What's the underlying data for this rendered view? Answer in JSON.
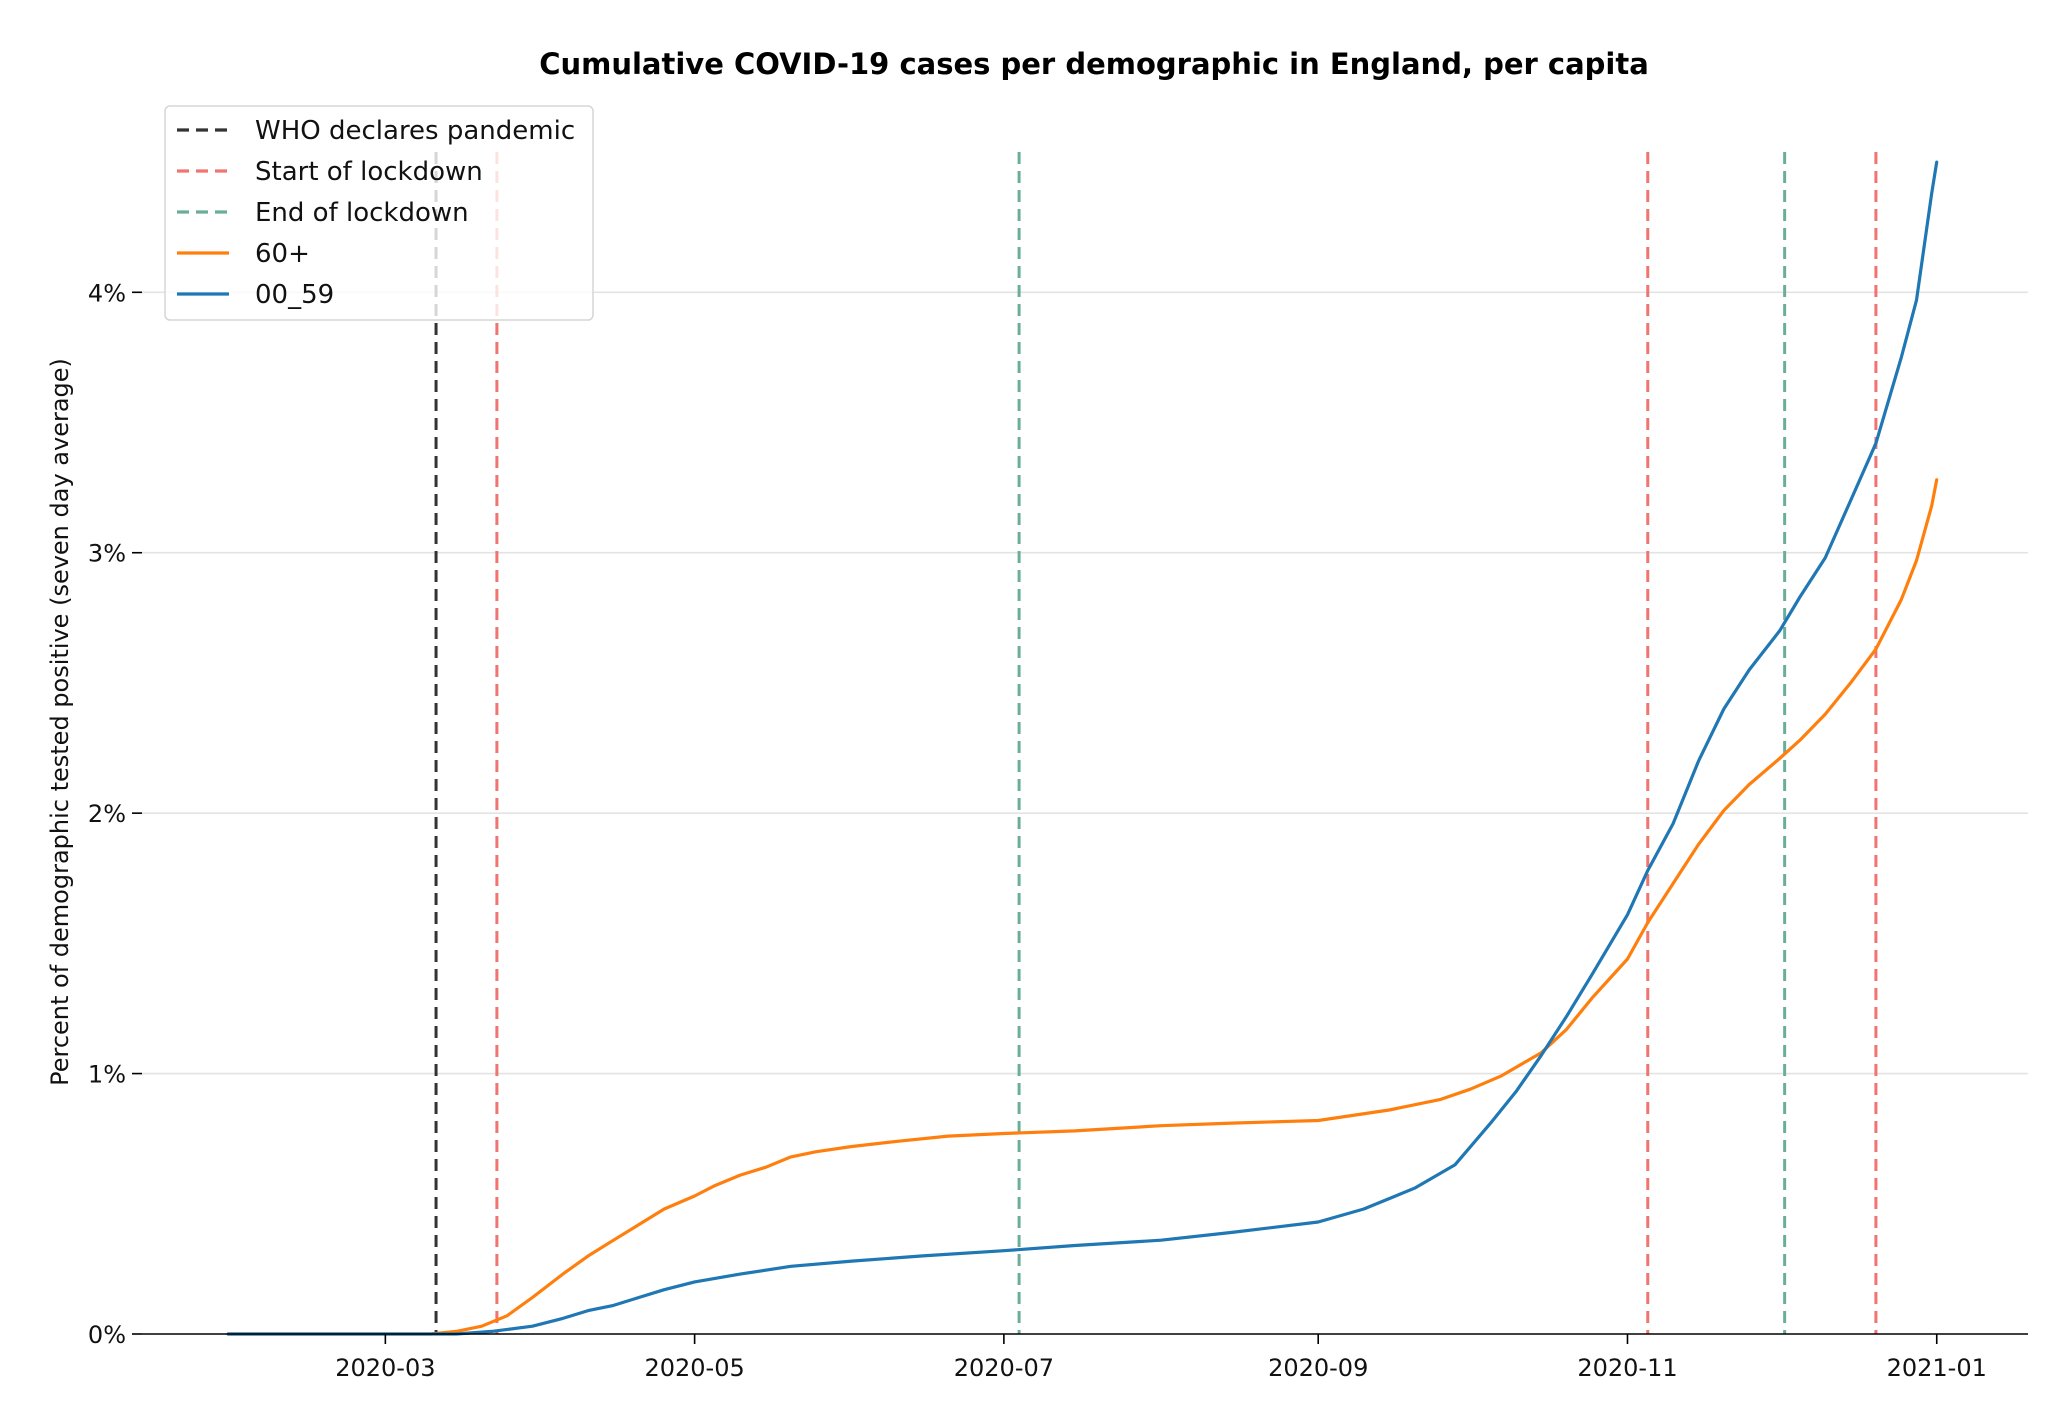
{
  "chart_data": {
    "type": "line",
    "title": "Cumulative COVID-19 cases per demographic in England, per capita",
    "xlabel": "",
    "ylabel": "Percent of demographic tested positive (seven day average)",
    "x_axis_type": "date",
    "xlim": [
      "2020-01-13",
      "2021-01-19"
    ],
    "ylim": [
      0,
      4.7
    ],
    "x_ticks": [
      "2020-03-01",
      "2020-05-01",
      "2020-07-01",
      "2020-09-01",
      "2020-11-01",
      "2021-01-01"
    ],
    "x_tick_labels": [
      "2020-03",
      "2020-05",
      "2020-07",
      "2020-09",
      "2020-11",
      "2021-01"
    ],
    "y_ticks": [
      0,
      1,
      2,
      3,
      4
    ],
    "y_tick_labels": [
      "0%",
      "1%",
      "2%",
      "3%",
      "4%"
    ],
    "grid": "horizontal",
    "legend_position": "top-left",
    "events": [
      {
        "name": "WHO declares pandemic",
        "date": "2020-03-11",
        "color": "#333333",
        "style": "dashed"
      },
      {
        "name": "Start of lockdown",
        "date": "2020-03-23",
        "color": "#f07470",
        "style": "dashed"
      },
      {
        "name": "End of lockdown",
        "date": "2020-07-04",
        "color": "#6aae99",
        "style": "dashed"
      },
      {
        "name": "Start of lockdown",
        "date": "2020-11-05",
        "color": "#f07470",
        "style": "dashed"
      },
      {
        "name": "End of lockdown",
        "date": "2020-12-02",
        "color": "#6aae99",
        "style": "dashed"
      },
      {
        "name": "Start of lockdown",
        "date": "2020-12-20",
        "color": "#f07470",
        "style": "dashed"
      }
    ],
    "legend": [
      {
        "label": "WHO declares pandemic",
        "color": "#333333",
        "style": "dashed"
      },
      {
        "label": "Start of lockdown",
        "color": "#f07470",
        "style": "dashed"
      },
      {
        "label": "End of lockdown",
        "color": "#6aae99",
        "style": "dashed"
      },
      {
        "label": "60+",
        "color": "#ff7f0e",
        "style": "solid"
      },
      {
        "label": "00_59",
        "color": "#1f77b4",
        "style": "solid"
      }
    ],
    "series": [
      {
        "name": "60+",
        "color": "#ff7f0e",
        "x": [
          "2020-01-30",
          "2020-03-10",
          "2020-03-15",
          "2020-03-20",
          "2020-03-25",
          "2020-03-30",
          "2020-04-05",
          "2020-04-10",
          "2020-04-15",
          "2020-04-20",
          "2020-04-25",
          "2020-05-01",
          "2020-05-05",
          "2020-05-10",
          "2020-05-15",
          "2020-05-20",
          "2020-05-25",
          "2020-06-01",
          "2020-06-10",
          "2020-06-20",
          "2020-07-01",
          "2020-07-15",
          "2020-08-01",
          "2020-08-15",
          "2020-09-01",
          "2020-09-15",
          "2020-09-25",
          "2020-10-01",
          "2020-10-07",
          "2020-10-15",
          "2020-10-20",
          "2020-10-25",
          "2020-11-01",
          "2020-11-05",
          "2020-11-10",
          "2020-11-15",
          "2020-11-20",
          "2020-11-25",
          "2020-12-01",
          "2020-12-05",
          "2020-12-10",
          "2020-12-15",
          "2020-12-20",
          "2020-12-25",
          "2020-12-28",
          "2020-12-31",
          "2021-01-01"
        ],
        "values": [
          0.0,
          0.0,
          0.01,
          0.03,
          0.07,
          0.14,
          0.23,
          0.3,
          0.36,
          0.42,
          0.48,
          0.53,
          0.57,
          0.61,
          0.64,
          0.68,
          0.7,
          0.72,
          0.74,
          0.76,
          0.77,
          0.78,
          0.8,
          0.81,
          0.82,
          0.86,
          0.9,
          0.94,
          0.99,
          1.08,
          1.17,
          1.29,
          1.44,
          1.58,
          1.73,
          1.88,
          2.01,
          2.11,
          2.21,
          2.28,
          2.38,
          2.5,
          2.63,
          2.82,
          2.97,
          3.18,
          3.28
        ]
      },
      {
        "name": "00_59",
        "color": "#1f77b4",
        "x": [
          "2020-01-30",
          "2020-03-15",
          "2020-03-22",
          "2020-03-30",
          "2020-04-05",
          "2020-04-10",
          "2020-04-15",
          "2020-04-20",
          "2020-04-25",
          "2020-05-01",
          "2020-05-10",
          "2020-05-20",
          "2020-06-01",
          "2020-06-15",
          "2020-07-01",
          "2020-07-15",
          "2020-08-01",
          "2020-08-15",
          "2020-09-01",
          "2020-09-10",
          "2020-09-20",
          "2020-09-28",
          "2020-10-05",
          "2020-10-10",
          "2020-10-15",
          "2020-10-20",
          "2020-10-25",
          "2020-11-01",
          "2020-11-05",
          "2020-11-10",
          "2020-11-15",
          "2020-11-20",
          "2020-11-25",
          "2020-12-01",
          "2020-12-05",
          "2020-12-10",
          "2020-12-15",
          "2020-12-20",
          "2020-12-25",
          "2020-12-28",
          "2020-12-31",
          "2021-01-01"
        ],
        "values": [
          0.0,
          0.0,
          0.01,
          0.03,
          0.06,
          0.09,
          0.11,
          0.14,
          0.17,
          0.2,
          0.23,
          0.26,
          0.28,
          0.3,
          0.32,
          0.34,
          0.36,
          0.39,
          0.43,
          0.48,
          0.56,
          0.65,
          0.81,
          0.93,
          1.07,
          1.22,
          1.38,
          1.61,
          1.78,
          1.96,
          2.2,
          2.4,
          2.55,
          2.7,
          2.83,
          2.98,
          3.2,
          3.42,
          3.75,
          3.97,
          4.38,
          4.5
        ]
      }
    ]
  }
}
